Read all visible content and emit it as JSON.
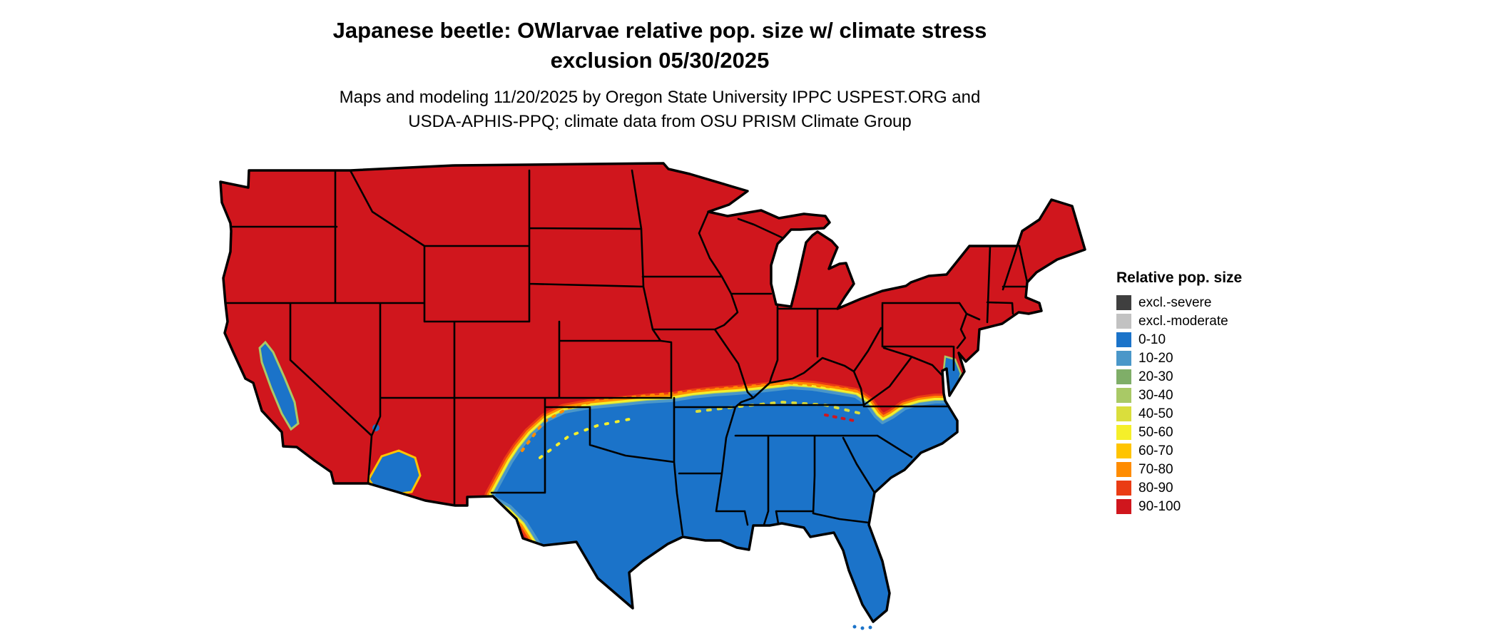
{
  "page": {
    "background": "#ffffff"
  },
  "title": {
    "line1": "Japanese beetle: OWlarvae relative pop. size w/ climate stress",
    "line2": "exclusion 05/30/2025"
  },
  "subtitle": {
    "line1": "Maps and modeling 11/20/2025 by Oregon State University IPPC USPEST.ORG and",
    "line2": "USDA-APHIS-PPQ; climate data from OSU PRISM Climate Group"
  },
  "legend": {
    "title": "Relative pop. size",
    "items": [
      {
        "key": "excl_severe",
        "label": "excl.-severe"
      },
      {
        "key": "excl_moderate",
        "label": "excl.-moderate"
      },
      {
        "key": "r0_10",
        "label": "0-10"
      },
      {
        "key": "r10_20",
        "label": "10-20"
      },
      {
        "key": "r20_30",
        "label": "20-30"
      },
      {
        "key": "r30_40",
        "label": "30-40"
      },
      {
        "key": "r40_50",
        "label": "40-50"
      },
      {
        "key": "r50_60",
        "label": "50-60"
      },
      {
        "key": "r60_70",
        "label": "60-70"
      },
      {
        "key": "r70_80",
        "label": "70-80"
      },
      {
        "key": "r80_90",
        "label": "80-90"
      },
      {
        "key": "r90_100",
        "label": "90-100"
      }
    ]
  },
  "colors": {
    "excl_severe": "#3f3f3f",
    "excl_moderate": "#c2c2c2",
    "r0_10": "#1b73c9",
    "r10_20": "#4a97c9",
    "r20_30": "#7fae68",
    "r30_40": "#a9c966",
    "r40_50": "#dade3c",
    "r50_60": "#f5ef2a",
    "r60_70": "#ffc400",
    "r70_80": "#ff8c00",
    "r80_90": "#ea3c14",
    "r90_100": "#d0161d",
    "state_border": "#000000",
    "background": "#ffffff"
  },
  "map": {
    "regions": [
      {
        "area": "northern and western United States",
        "value_bin": "90-100"
      },
      {
        "area": "southern United States (Texas to the Carolinas, Florida)",
        "value_bin": "0-10"
      },
      {
        "area": "transition band from New Mexico through Oklahoma, Missouri, Kentucky to Virginia",
        "value_bin": "10-80"
      },
      {
        "area": "California Central Valley",
        "value_bin": "0-10"
      },
      {
        "area": "southwestern Arizona low desert",
        "value_bin": "0-10"
      },
      {
        "area": "Delmarva Peninsula / Chesapeake",
        "value_bin": "0-40"
      }
    ]
  }
}
